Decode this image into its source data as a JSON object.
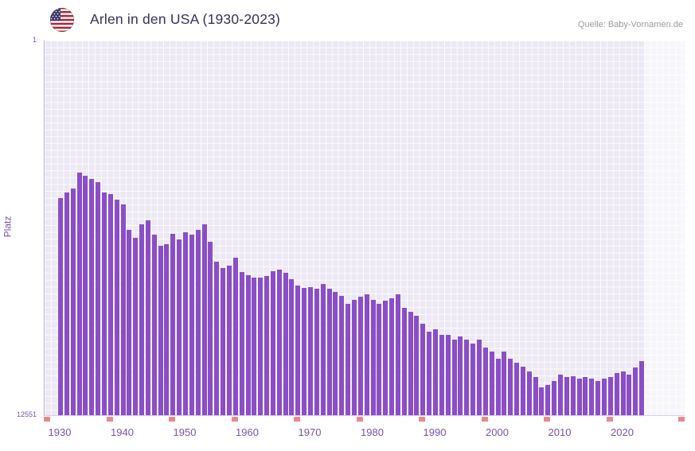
{
  "header": {
    "title": "Arlen in den USA (1930-2023)",
    "source": "Quelle: Baby-Vornamen.de"
  },
  "axes": {
    "y_label": "Platz",
    "y_top_tick": "1",
    "y_bottom_tick": "12551",
    "x_ticks": [
      "1930",
      "1940",
      "1950",
      "1960",
      "1970",
      "1980",
      "1990",
      "2000",
      "2010",
      "2020"
    ]
  },
  "colors": {
    "bar": "#8a4ec6",
    "plot_background": "#ece8f4",
    "grid": "#ffffff",
    "tick_text": "#7b52ab",
    "title_text": "#37305c",
    "source_text": "#999999",
    "decade_mark": "#e88a8a",
    "future_band": "rgba(255,255,255,0.55)"
  },
  "chart_data": {
    "type": "bar",
    "title": "Arlen in den USA (1930-2023)",
    "xlabel": "",
    "ylabel": "Platz",
    "legend": "none",
    "grid": "on",
    "y_axis": {
      "min": 1,
      "max": 12551,
      "inverted": true,
      "note": "rank 1 at top, bars rise from bottom toward better rank"
    },
    "years": [
      1930,
      1931,
      1932,
      1933,
      1934,
      1935,
      1936,
      1937,
      1938,
      1939,
      1940,
      1941,
      1942,
      1943,
      1944,
      1945,
      1946,
      1947,
      1948,
      1949,
      1950,
      1951,
      1952,
      1953,
      1954,
      1955,
      1956,
      1957,
      1958,
      1959,
      1960,
      1961,
      1962,
      1963,
      1964,
      1965,
      1966,
      1967,
      1968,
      1969,
      1970,
      1971,
      1972,
      1973,
      1974,
      1975,
      1976,
      1977,
      1978,
      1979,
      1980,
      1981,
      1982,
      1983,
      1984,
      1985,
      1986,
      1987,
      1988,
      1989,
      1990,
      1991,
      1992,
      1993,
      1994,
      1995,
      1996,
      1997,
      1998,
      1999,
      2000,
      2001,
      2002,
      2003,
      2004,
      2005,
      2006,
      2007,
      2008,
      2009,
      2010,
      2011,
      2012,
      2013,
      2014,
      2015,
      2016,
      2017,
      2018,
      2019,
      2020,
      2021,
      2022,
      2023
    ],
    "ranks": [
      5290,
      5100,
      4970,
      4440,
      4550,
      4650,
      4760,
      5100,
      5160,
      5340,
      5500,
      6360,
      6620,
      6170,
      6040,
      6520,
      6890,
      6840,
      6490,
      6680,
      6440,
      6520,
      6360,
      6170,
      6760,
      7420,
      7630,
      7550,
      7290,
      7770,
      7870,
      7950,
      7950,
      7900,
      7740,
      7690,
      7790,
      8010,
      8220,
      8300,
      8270,
      8330,
      8170,
      8330,
      8430,
      8570,
      8830,
      8700,
      8590,
      8510,
      8700,
      8830,
      8720,
      8650,
      8510,
      8960,
      9100,
      9230,
      9490,
      9760,
      9680,
      9870,
      9870,
      10030,
      9920,
      10030,
      10160,
      10030,
      10290,
      10430,
      10670,
      10430,
      10670,
      10800,
      10930,
      11090,
      11280,
      11620,
      11540,
      11410,
      11200,
      11280,
      11250,
      11330,
      11280,
      11330,
      11410,
      11330,
      11280,
      11140,
      11090,
      11200,
      10960,
      10740
    ]
  }
}
